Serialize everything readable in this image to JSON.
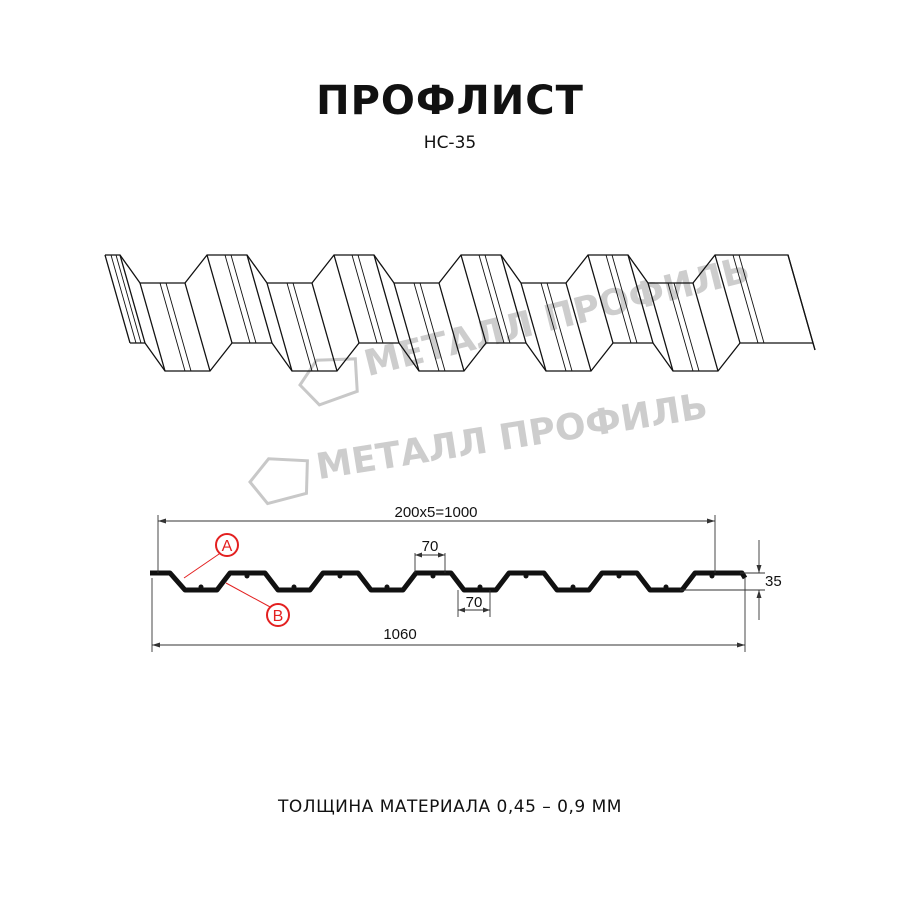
{
  "title": "ПРОФЛИСТ",
  "subtitle": "НС-35",
  "watermark": "МЕТАЛЛ ПРОФИЛЬ",
  "dimensions": {
    "pitch_total": "200x5=1000",
    "crest_width": "70",
    "trough_width": "70",
    "height": "35",
    "total_width": "1060"
  },
  "callouts": {
    "a": "A",
    "b": "B"
  },
  "callout_color": "#e32020",
  "footer": "ТОЛЩИНА МАТЕРИАЛА 0,45 – 0,9 ММ"
}
